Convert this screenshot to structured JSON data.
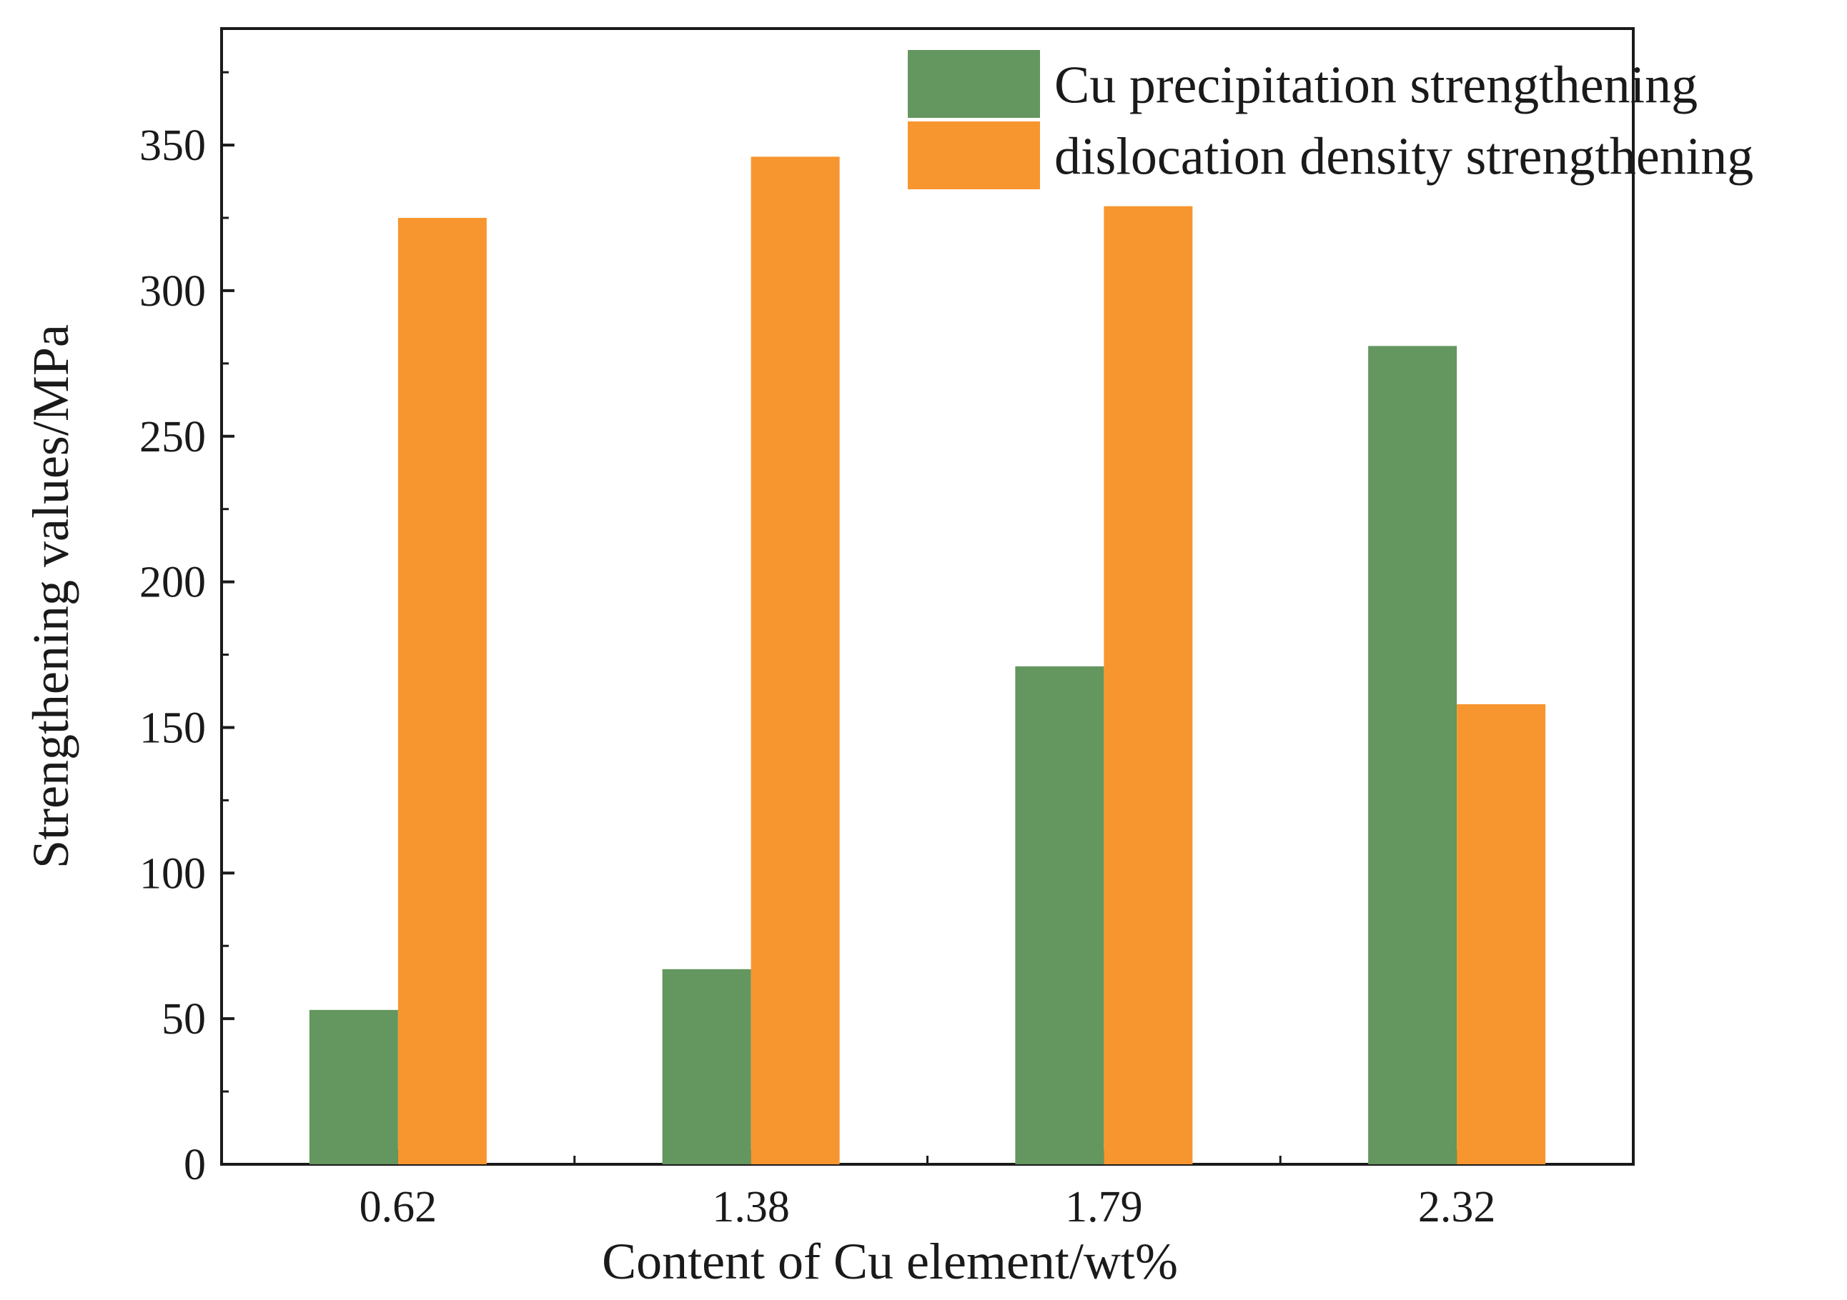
{
  "chart_data": {
    "type": "bar",
    "categories": [
      "0.62",
      "1.38",
      "1.79",
      "2.32"
    ],
    "series": [
      {
        "name": "Cu precipitation strengthening",
        "values": [
          53,
          67,
          171,
          281
        ],
        "color": "#64965f"
      },
      {
        "name": "dislocation density strengthening",
        "values": [
          325,
          346,
          329,
          158
        ],
        "color": "#f7962f"
      }
    ],
    "xlabel": "Content of Cu element/wt%",
    "ylabel": "Strengthening values/MPa",
    "ylim": [
      0,
      390
    ],
    "yticks": [
      0,
      50,
      100,
      150,
      200,
      250,
      300,
      350
    ],
    "grid": false,
    "legend": "top-right"
  }
}
